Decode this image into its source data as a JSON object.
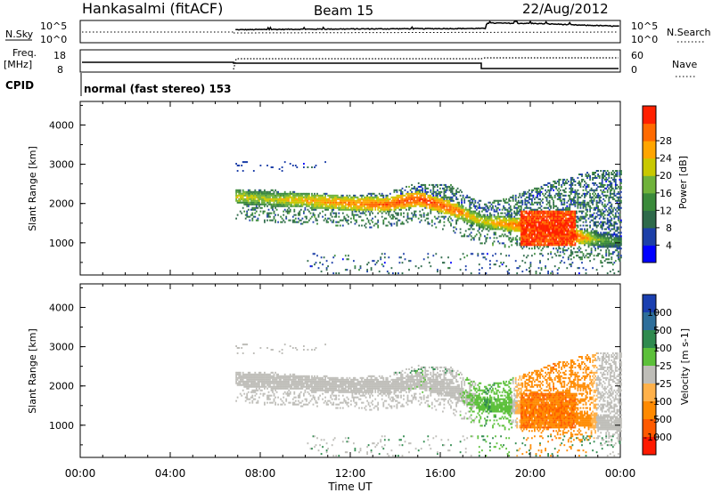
{
  "header": {
    "station": "Hankasalmi (fitACF)",
    "beam": "Beam 15",
    "date": "22/Aug/2012"
  },
  "left_labels": {
    "nsky": "N.Sky",
    "freq_top": "Freq.",
    "freq_unit": "[MHz]",
    "cpid": "CPID"
  },
  "right_labels": {
    "nsearch": "N.Search",
    "nave": "Nave"
  },
  "cpid_text": "normal (fast stereo) 153",
  "noise_axis": {
    "top": "10^5",
    "bottom": "10^0"
  },
  "freq_axis": {
    "top": "18",
    "bottom": "8"
  },
  "nave_axis": {
    "top": "60",
    "bottom": "0"
  },
  "xaxis": {
    "label": "Time UT",
    "ticks": [
      "00:00",
      "04:00",
      "08:00",
      "12:00",
      "16:00",
      "20:00",
      "00:00"
    ]
  },
  "yaxis": {
    "label": "Slant Range [km]",
    "ticks": [
      "1000",
      "2000",
      "3000",
      "4000"
    ]
  },
  "power_bar": {
    "label": "Power [dB]",
    "ticks": [
      "4",
      "8",
      "12",
      "16",
      "20",
      "24",
      "28"
    ],
    "colors": [
      "#0000ff",
      "#1c3fa8",
      "#2e6a4a",
      "#3a8a3a",
      "#6fb23a",
      "#c8c800",
      "#ffa500",
      "#ff6a00",
      "#ff2000"
    ]
  },
  "velocity_bar": {
    "label": "Velocity [m s-1]",
    "ticks": [
      "1000",
      "500",
      "100",
      "25",
      "-25",
      "-100",
      "-500",
      "-1000"
    ],
    "colors": [
      "#1a3fb0",
      "#2e6e9a",
      "#2f8a4e",
      "#5cc03a",
      "#bebdb8",
      "#ffb14a",
      "#ff8a00",
      "#ff5a00",
      "#ff1a00"
    ]
  },
  "chart_data": [
    {
      "type": "heatmap",
      "name": "Power",
      "xlabel": "Time UT",
      "ylabel": "Slant Range [km]",
      "xlim": [
        0,
        24
      ],
      "ylim": [
        180,
        4600
      ],
      "colorbar": {
        "label": "Power [dB]",
        "range": [
          0,
          30
        ]
      },
      "echo_band": {
        "x": [
          6.9,
          8,
          10,
          12,
          13.5,
          15,
          16.5,
          17.5,
          18,
          19,
          20,
          21,
          22,
          23,
          24
        ],
        "center_km": [
          2150,
          2100,
          2050,
          1980,
          1950,
          2100,
          1850,
          1600,
          1500,
          1450,
          1400,
          1250,
          1150,
          1050,
          1000
        ],
        "upper_edge_km": [
          2300,
          2350,
          2250,
          2200,
          2250,
          2500,
          2450,
          2100,
          2000,
          2150,
          2350,
          2550,
          2700,
          2850,
          2850
        ],
        "peak_power_db": [
          20,
          18,
          22,
          24,
          26,
          28,
          26,
          20,
          20,
          24,
          28,
          30,
          28,
          16,
          12
        ]
      }
    },
    {
      "type": "heatmap",
      "name": "Velocity",
      "xlabel": "Time UT",
      "ylabel": "Slant Range [km]",
      "xlim": [
        0,
        24
      ],
      "ylim": [
        180,
        4600
      ],
      "colorbar": {
        "label": "Velocity [m s-1]",
        "range": [
          -1000,
          1000
        ]
      },
      "echo_band": {
        "x": [
          6.9,
          8,
          10,
          12,
          13.5,
          15,
          16.5,
          17.5,
          18,
          19,
          20,
          21,
          22,
          23,
          24
        ],
        "center_km": [
          2150,
          2100,
          2050,
          1980,
          1950,
          2100,
          1850,
          1600,
          1500,
          1450,
          1400,
          1250,
          1150,
          1050,
          1000
        ],
        "velocity_ms": [
          0,
          0,
          0,
          0,
          0,
          10,
          0,
          30,
          100,
          60,
          -200,
          -500,
          -300,
          0,
          0
        ]
      }
    },
    {
      "type": "line",
      "name": "N.Sky",
      "x": [
        6.9,
        10,
        14,
        18,
        18.1,
        20,
        22,
        24
      ],
      "y": [
        1000,
        1400,
        1800,
        2200,
        60000,
        50000,
        18000,
        8000
      ],
      "ylim_label": [
        "10^0",
        "10^5"
      ],
      "log": true
    }
  ]
}
